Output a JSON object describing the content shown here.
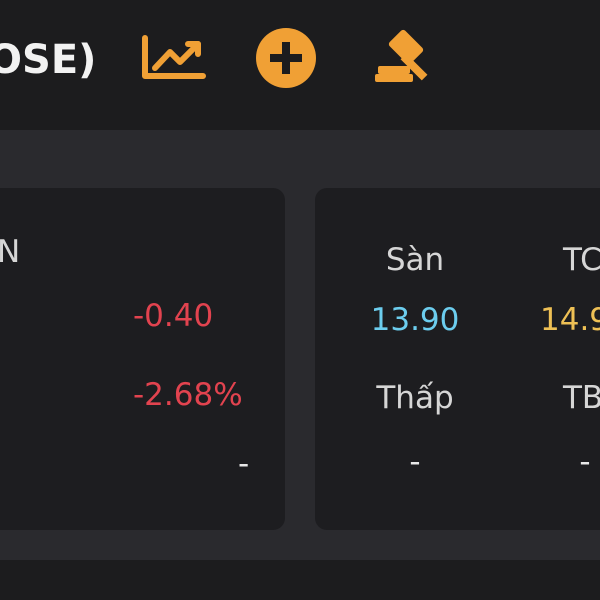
{
  "header": {
    "title": "OSE)"
  },
  "left_card": {
    "label": "N",
    "change": "-0.40",
    "change_percent": "-2.68%",
    "other": "-"
  },
  "right_card": {
    "items": [
      {
        "label": "Sàn",
        "value": "13.90"
      },
      {
        "label": "TC",
        "value": "14.9"
      },
      {
        "label": "Thấp",
        "value": "-"
      },
      {
        "label": "TB",
        "value": "-"
      }
    ]
  }
}
